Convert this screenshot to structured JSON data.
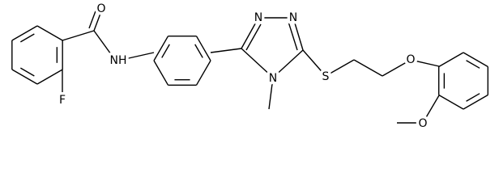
{
  "atoms": {
    "carbonyl_o": "O",
    "amide_nh": "NH",
    "fluorine": "F",
    "triazole_n1": "N",
    "triazole_n2": "N",
    "triazole_n4": "N",
    "sulfur": "S",
    "ether_o": "O",
    "methoxy_o": "O"
  }
}
